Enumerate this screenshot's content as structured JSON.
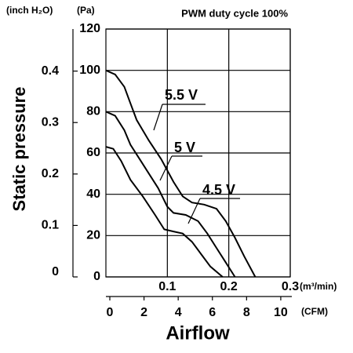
{
  "chart_data": {
    "type": "line",
    "title": "PWM duty cycle 100%",
    "y_unit": "(Pa)",
    "y2_unit": "(inch H₂O)",
    "x_unit": "(m³/min)",
    "x2_unit": "(CFM)",
    "ylabel": "Static pressure",
    "xlabel": "Airflow",
    "xlim": [
      0,
      0.3
    ],
    "xticks": [
      0.1,
      0.2,
      0.3
    ],
    "x2lim": [
      0,
      10.6
    ],
    "x2ticks": [
      0,
      2,
      4,
      6,
      8,
      10
    ],
    "ylim": [
      0,
      120
    ],
    "yticks": [
      0,
      20,
      40,
      60,
      80,
      100,
      120
    ],
    "y2lim": [
      0,
      0.48
    ],
    "y2ticks": [
      0,
      0.1,
      0.2,
      0.3,
      0.4
    ],
    "grid": true,
    "series": [
      {
        "name": "5.5 V",
        "color": "#000000",
        "x": [
          0,
          0.015,
          0.03,
          0.04,
          0.05,
          0.07,
          0.09,
          0.11,
          0.125,
          0.14,
          0.16,
          0.18,
          0.195,
          0.21,
          0.225,
          0.243
        ],
        "values": [
          100,
          98,
          92,
          84,
          76,
          66,
          57,
          46,
          39,
          36,
          35,
          33,
          27,
          19,
          10,
          0
        ]
      },
      {
        "name": "5 V",
        "color": "#000000",
        "x": [
          0,
          0.015,
          0.03,
          0.04,
          0.055,
          0.07,
          0.085,
          0.1,
          0.11,
          0.13,
          0.15,
          0.165,
          0.18,
          0.195,
          0.21
        ],
        "values": [
          80,
          78,
          71,
          64,
          57,
          50,
          43,
          34,
          31,
          30,
          27,
          21,
          14,
          7,
          0
        ]
      },
      {
        "name": "4.5 V",
        "color": "#000000",
        "x": [
          0,
          0.012,
          0.025,
          0.04,
          0.06,
          0.08,
          0.095,
          0.11,
          0.125,
          0.14,
          0.155,
          0.17,
          0.19
        ],
        "values": [
          63,
          62,
          56,
          47,
          39,
          30,
          23,
          22,
          21,
          17,
          11,
          5,
          0
        ]
      }
    ]
  }
}
